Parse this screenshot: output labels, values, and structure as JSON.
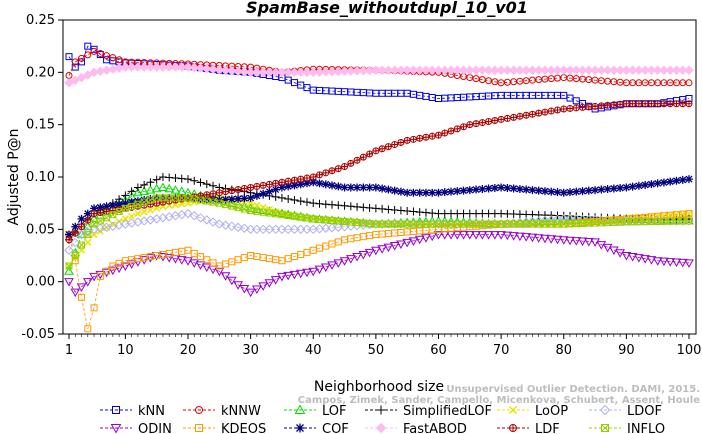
{
  "chart_data": {
    "type": "line",
    "title": "SpamBase_withoutdupl_10_v01",
    "xlabel": "Neighborhood size",
    "ylabel": "Adjusted P@n",
    "xlim": [
      1,
      100
    ],
    "ylim": [
      -0.05,
      0.25
    ],
    "xticks": [
      "1",
      "10",
      "20",
      "30",
      "40",
      "50",
      "60",
      "70",
      "80",
      "90",
      "100"
    ],
    "yticks": [
      "-0.05",
      "0.00",
      "0.05",
      "0.10",
      "0.15",
      "0.20",
      "0.25"
    ],
    "grid": false,
    "legend": "bottom",
    "series": [
      {
        "name": "kNN",
        "color": "#0000ee",
        "marker": "square",
        "keypoints": [
          [
            1,
            0.215
          ],
          [
            2,
            0.205
          ],
          [
            3,
            0.21
          ],
          [
            4,
            0.225
          ],
          [
            5,
            0.222
          ],
          [
            7,
            0.212
          ],
          [
            10,
            0.209
          ],
          [
            20,
            0.206
          ],
          [
            25,
            0.202
          ],
          [
            30,
            0.2
          ],
          [
            35,
            0.195
          ],
          [
            40,
            0.183
          ],
          [
            50,
            0.18
          ],
          [
            55,
            0.18
          ],
          [
            60,
            0.175
          ],
          [
            70,
            0.178
          ],
          [
            80,
            0.178
          ],
          [
            85,
            0.165
          ],
          [
            90,
            0.17
          ],
          [
            95,
            0.17
          ],
          [
            100,
            0.175
          ]
        ]
      },
      {
        "name": "kNNW",
        "color": "#e00000",
        "marker": "circle",
        "keypoints": [
          [
            1,
            0.197
          ],
          [
            2,
            0.21
          ],
          [
            5,
            0.22
          ],
          [
            10,
            0.21
          ],
          [
            20,
            0.208
          ],
          [
            30,
            0.205
          ],
          [
            35,
            0.2
          ],
          [
            40,
            0.203
          ],
          [
            50,
            0.202
          ],
          [
            60,
            0.2
          ],
          [
            70,
            0.19
          ],
          [
            80,
            0.195
          ],
          [
            90,
            0.19
          ],
          [
            100,
            0.19
          ]
        ]
      },
      {
        "name": "LOF",
        "color": "#00dd00",
        "marker": "triangle",
        "keypoints": [
          [
            1,
            0.01
          ],
          [
            3,
            0.045
          ],
          [
            5,
            0.06
          ],
          [
            8,
            0.07
          ],
          [
            12,
            0.085
          ],
          [
            16,
            0.09
          ],
          [
            20,
            0.085
          ],
          [
            25,
            0.078
          ],
          [
            30,
            0.07
          ],
          [
            35,
            0.065
          ],
          [
            40,
            0.06
          ],
          [
            50,
            0.055
          ],
          [
            60,
            0.058
          ],
          [
            70,
            0.055
          ],
          [
            80,
            0.058
          ],
          [
            90,
            0.06
          ],
          [
            100,
            0.058
          ]
        ]
      },
      {
        "name": "SimplifiedLOF",
        "color": "#000000",
        "marker": "plus",
        "keypoints": [
          [
            1,
            0.04
          ],
          [
            3,
            0.055
          ],
          [
            5,
            0.065
          ],
          [
            8,
            0.075
          ],
          [
            12,
            0.09
          ],
          [
            16,
            0.1
          ],
          [
            20,
            0.098
          ],
          [
            25,
            0.09
          ],
          [
            30,
            0.085
          ],
          [
            35,
            0.08
          ],
          [
            40,
            0.075
          ],
          [
            50,
            0.07
          ],
          [
            60,
            0.065
          ],
          [
            70,
            0.065
          ],
          [
            80,
            0.063
          ],
          [
            90,
            0.06
          ],
          [
            100,
            0.06
          ]
        ]
      },
      {
        "name": "LoOP",
        "color": "#e6e600",
        "marker": "cross",
        "keypoints": [
          [
            1,
            0.015
          ],
          [
            3,
            0.03
          ],
          [
            5,
            0.045
          ],
          [
            8,
            0.055
          ],
          [
            12,
            0.065
          ],
          [
            16,
            0.072
          ],
          [
            20,
            0.075
          ],
          [
            25,
            0.08
          ],
          [
            30,
            0.075
          ],
          [
            35,
            0.065
          ],
          [
            40,
            0.06
          ],
          [
            50,
            0.055
          ],
          [
            60,
            0.055
          ],
          [
            70,
            0.055
          ],
          [
            80,
            0.055
          ],
          [
            90,
            0.06
          ],
          [
            100,
            0.065
          ]
        ]
      },
      {
        "name": "LDOF",
        "color": "#b0b0f0",
        "marker": "diamond",
        "keypoints": [
          [
            1,
            0.03
          ],
          [
            3,
            0.045
          ],
          [
            5,
            0.05
          ],
          [
            10,
            0.055
          ],
          [
            15,
            0.06
          ],
          [
            20,
            0.065
          ],
          [
            25,
            0.055
          ],
          [
            30,
            0.05
          ],
          [
            40,
            0.05
          ],
          [
            50,
            0.055
          ],
          [
            60,
            0.055
          ],
          [
            70,
            0.055
          ],
          [
            80,
            0.06
          ],
          [
            90,
            0.058
          ],
          [
            100,
            0.058
          ]
        ]
      },
      {
        "name": "ODIN",
        "color": "#9900cc",
        "marker": "triangle-down",
        "keypoints": [
          [
            1,
            0.0
          ],
          [
            2,
            -0.01
          ],
          [
            5,
            0.005
          ],
          [
            10,
            0.015
          ],
          [
            15,
            0.025
          ],
          [
            20,
            0.02
          ],
          [
            25,
            0.01
          ],
          [
            28,
            -0.003
          ],
          [
            30,
            -0.01
          ],
          [
            35,
            0.005
          ],
          [
            40,
            0.01
          ],
          [
            45,
            0.02
          ],
          [
            50,
            0.03
          ],
          [
            60,
            0.045
          ],
          [
            70,
            0.045
          ],
          [
            80,
            0.04
          ],
          [
            85,
            0.038
          ],
          [
            90,
            0.025
          ],
          [
            95,
            0.02
          ],
          [
            100,
            0.018
          ]
        ]
      },
      {
        "name": "KDEOS",
        "color": "#ff9900",
        "marker": "square",
        "keypoints": [
          [
            1,
            0.045
          ],
          [
            2,
            0.02
          ],
          [
            3,
            -0.015
          ],
          [
            4,
            -0.045
          ],
          [
            5,
            -0.025
          ],
          [
            6,
            0.005
          ],
          [
            8,
            0.015
          ],
          [
            10,
            0.02
          ],
          [
            15,
            0.025
          ],
          [
            20,
            0.03
          ],
          [
            25,
            0.015
          ],
          [
            30,
            0.025
          ],
          [
            35,
            0.02
          ],
          [
            40,
            0.03
          ],
          [
            45,
            0.04
          ],
          [
            50,
            0.045
          ],
          [
            60,
            0.05
          ],
          [
            70,
            0.055
          ],
          [
            80,
            0.055
          ],
          [
            90,
            0.06
          ],
          [
            100,
            0.065
          ]
        ]
      },
      {
        "name": "COF",
        "color": "#000080",
        "marker": "asterisk",
        "keypoints": [
          [
            1,
            0.045
          ],
          [
            3,
            0.06
          ],
          [
            5,
            0.07
          ],
          [
            10,
            0.075
          ],
          [
            15,
            0.08
          ],
          [
            20,
            0.08
          ],
          [
            25,
            0.078
          ],
          [
            30,
            0.08
          ],
          [
            35,
            0.09
          ],
          [
            40,
            0.095
          ],
          [
            45,
            0.09
          ],
          [
            50,
            0.09
          ],
          [
            55,
            0.085
          ],
          [
            60,
            0.085
          ],
          [
            70,
            0.09
          ],
          [
            80,
            0.085
          ],
          [
            90,
            0.09
          ],
          [
            100,
            0.098
          ]
        ]
      },
      {
        "name": "FastABOD",
        "color": "#ffbbee",
        "marker": "diamond-filled",
        "keypoints": [
          [
            1,
            0.19
          ],
          [
            5,
            0.2
          ],
          [
            10,
            0.205
          ],
          [
            20,
            0.205
          ],
          [
            30,
            0.2
          ],
          [
            40,
            0.2
          ],
          [
            50,
            0.202
          ],
          [
            60,
            0.202
          ],
          [
            70,
            0.202
          ],
          [
            80,
            0.202
          ],
          [
            90,
            0.202
          ],
          [
            100,
            0.202
          ]
        ]
      },
      {
        "name": "LDF",
        "color": "#aa0000",
        "marker": "circle-plus",
        "keypoints": [
          [
            1,
            0.04
          ],
          [
            5,
            0.065
          ],
          [
            10,
            0.07
          ],
          [
            15,
            0.075
          ],
          [
            20,
            0.08
          ],
          [
            25,
            0.085
          ],
          [
            30,
            0.09
          ],
          [
            35,
            0.095
          ],
          [
            40,
            0.1
          ],
          [
            45,
            0.11
          ],
          [
            50,
            0.125
          ],
          [
            55,
            0.135
          ],
          [
            60,
            0.14
          ],
          [
            65,
            0.15
          ],
          [
            70,
            0.155
          ],
          [
            75,
            0.16
          ],
          [
            80,
            0.165
          ],
          [
            90,
            0.17
          ],
          [
            100,
            0.17
          ]
        ]
      },
      {
        "name": "INFLO",
        "color": "#99cc00",
        "marker": "x-square",
        "keypoints": [
          [
            1,
            0.015
          ],
          [
            3,
            0.035
          ],
          [
            5,
            0.055
          ],
          [
            10,
            0.07
          ],
          [
            15,
            0.08
          ],
          [
            20,
            0.08
          ],
          [
            25,
            0.075
          ],
          [
            30,
            0.068
          ],
          [
            40,
            0.06
          ],
          [
            50,
            0.055
          ],
          [
            60,
            0.055
          ],
          [
            70,
            0.055
          ],
          [
            80,
            0.055
          ],
          [
            90,
            0.057
          ],
          [
            100,
            0.058
          ]
        ]
      }
    ],
    "legend_rows": [
      [
        "kNN",
        "kNNW",
        "LOF",
        "SimplifiedLOF",
        "LoOP",
        "LDOF"
      ],
      [
        "ODIN",
        "KDEOS",
        "COF",
        "FastABOD",
        "LDF",
        "INFLO"
      ]
    ]
  },
  "watermark": {
    "line1": "Unsupervised Outlier Detection. DAMI, 2015.",
    "line2": "Campos, Zimek, Sander, Campello, Micenkova, Schubert, Assent, Houle"
  }
}
